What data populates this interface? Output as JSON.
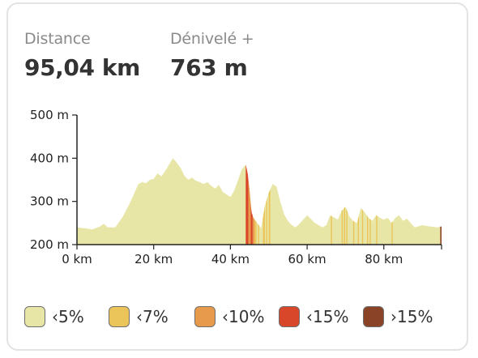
{
  "stats": {
    "distance": {
      "label": "Distance",
      "value": "95,04 km"
    },
    "elevation": {
      "label": "Dénivelé +",
      "value": "763 m"
    }
  },
  "legend": [
    {
      "label": "‹5%",
      "color": "#e8e6a6"
    },
    {
      "label": "‹7%",
      "color": "#ebc55a"
    },
    {
      "label": "‹10%",
      "color": "#e89a4c"
    },
    {
      "label": "‹15%",
      "color": "#d9472b"
    },
    {
      "label": "›15%",
      "color": "#8a4326"
    }
  ],
  "chart_data": {
    "type": "area",
    "xlabel": "",
    "ylabel": "",
    "xlim": [
      0,
      95.04
    ],
    "ylim": [
      200,
      500
    ],
    "x_ticks": [
      {
        "value": 0,
        "label": "0 km"
      },
      {
        "value": 20,
        "label": "20 km"
      },
      {
        "value": 40,
        "label": "40 km"
      },
      {
        "value": 60,
        "label": "60 km"
      },
      {
        "value": 80,
        "label": "80 km"
      }
    ],
    "y_ticks": [
      {
        "value": 200,
        "label": "200 m"
      },
      {
        "value": 300,
        "label": "300 m"
      },
      {
        "value": 400,
        "label": "400 m"
      },
      {
        "value": 500,
        "label": "500 m"
      }
    ],
    "grid": false,
    "x": [
      0,
      2,
      4,
      6,
      7,
      8,
      10,
      12,
      14,
      15,
      16,
      17,
      18,
      19,
      20,
      21,
      22,
      23,
      24,
      25,
      26,
      27,
      28,
      29,
      30,
      31,
      32,
      33,
      34,
      35,
      36,
      37,
      38,
      39,
      40,
      41,
      42,
      43,
      44,
      44.5,
      45,
      45.5,
      46,
      47,
      48,
      49,
      50,
      51,
      52,
      53,
      54,
      55,
      56,
      57,
      58,
      60,
      62,
      64,
      65,
      66,
      68,
      69,
      70,
      71,
      72,
      73,
      74,
      75,
      76,
      77,
      78,
      79,
      80,
      81,
      82,
      83,
      84,
      85,
      86,
      88,
      90,
      92,
      94,
      95
    ],
    "elevation": [
      240,
      238,
      235,
      242,
      248,
      240,
      240,
      265,
      300,
      320,
      340,
      345,
      342,
      350,
      352,
      365,
      358,
      370,
      385,
      400,
      390,
      378,
      360,
      350,
      355,
      348,
      345,
      340,
      345,
      336,
      330,
      338,
      322,
      316,
      310,
      325,
      350,
      375,
      385,
      365,
      325,
      275,
      262,
      250,
      238,
      290,
      320,
      340,
      335,
      300,
      270,
      255,
      245,
      240,
      248,
      268,
      250,
      240,
      245,
      268,
      258,
      278,
      288,
      265,
      255,
      250,
      285,
      275,
      262,
      255,
      268,
      262,
      258,
      262,
      250,
      262,
      268,
      255,
      260,
      240,
      245,
      242,
      240,
      242
    ],
    "grade_segments": [
      {
        "start": 44.0,
        "end": 44.7,
        "grade": "‹15%"
      },
      {
        "start": 44.7,
        "end": 45.3,
        "grade": "‹10%"
      },
      {
        "start": 45.3,
        "end": 45.8,
        "grade": "‹15%"
      },
      {
        "start": 45.8,
        "end": 46.3,
        "grade": "‹10%"
      },
      {
        "start": 46.3,
        "end": 46.8,
        "grade": "‹7%"
      },
      {
        "start": 47.2,
        "end": 47.5,
        "grade": "‹7%"
      },
      {
        "start": 48.5,
        "end": 49.0,
        "grade": "‹7%"
      },
      {
        "start": 49.3,
        "end": 49.6,
        "grade": "‹7%"
      },
      {
        "start": 50.0,
        "end": 50.4,
        "grade": "‹7%"
      },
      {
        "start": 66.2,
        "end": 66.5,
        "grade": "‹7%"
      },
      {
        "start": 69.0,
        "end": 69.3,
        "grade": "‹7%"
      },
      {
        "start": 69.6,
        "end": 69.9,
        "grade": "‹7%"
      },
      {
        "start": 70.2,
        "end": 70.5,
        "grade": "‹7%"
      },
      {
        "start": 72.0,
        "end": 72.3,
        "grade": "‹7%"
      },
      {
        "start": 73.2,
        "end": 73.5,
        "grade": "‹7%"
      },
      {
        "start": 74.3,
        "end": 74.6,
        "grade": "‹7%"
      },
      {
        "start": 75.6,
        "end": 75.9,
        "grade": "‹7%"
      },
      {
        "start": 76.3,
        "end": 76.6,
        "grade": "‹7%"
      },
      {
        "start": 78.0,
        "end": 78.3,
        "grade": "‹7%"
      },
      {
        "start": 82.0,
        "end": 82.3,
        "grade": "‹7%"
      },
      {
        "start": 94.7,
        "end": 95.04,
        "grade": "›15%"
      }
    ]
  }
}
